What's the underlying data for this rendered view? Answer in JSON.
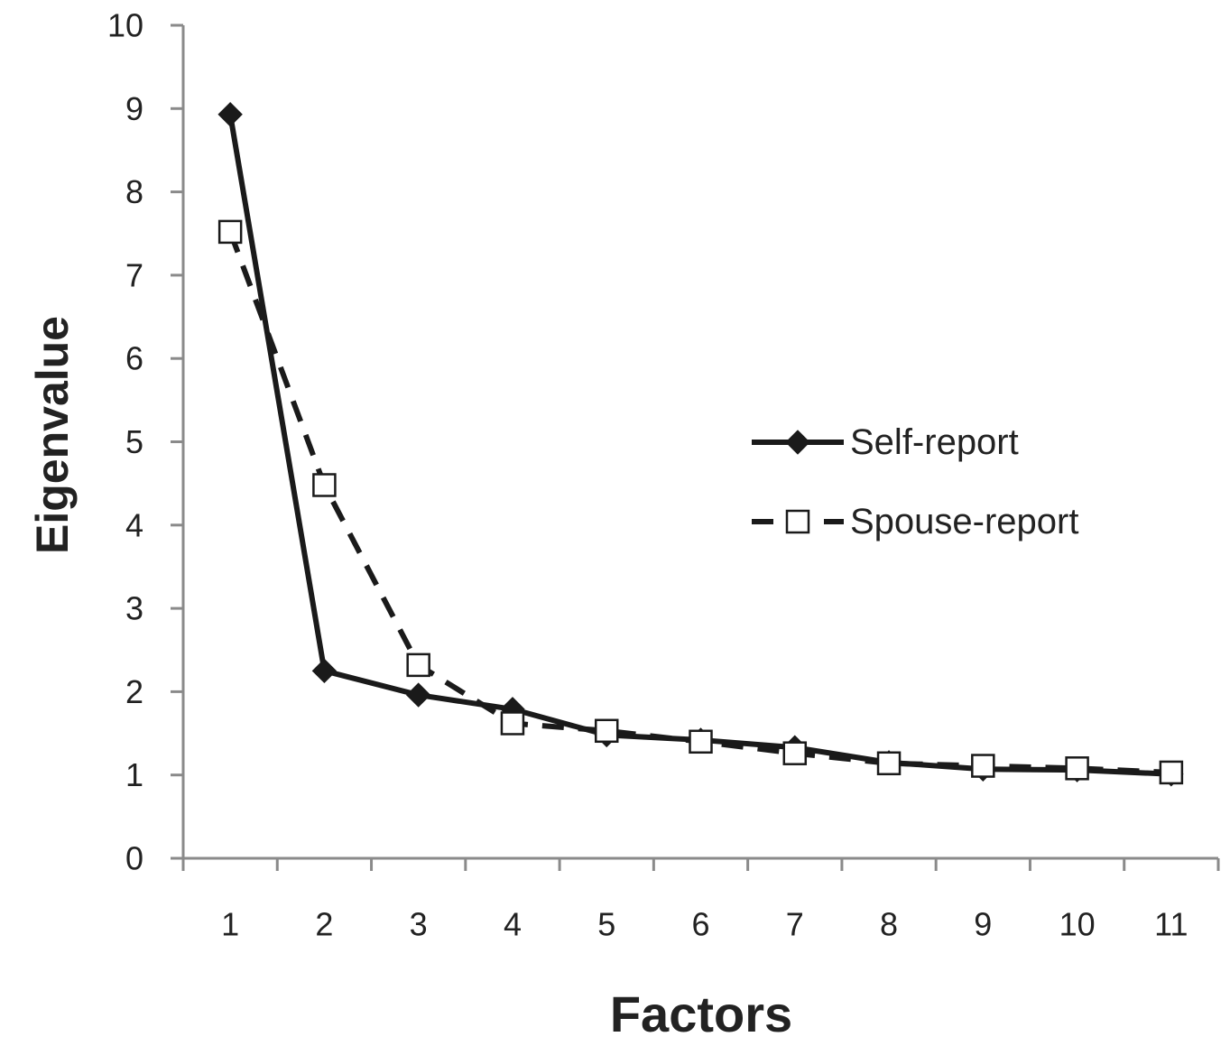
{
  "chart_data": {
    "type": "line",
    "xlabel": "Factors",
    "ylabel": "Eigenvalue",
    "categories": [
      "1",
      "2",
      "3",
      "4",
      "5",
      "6",
      "7",
      "8",
      "9",
      "10",
      "11"
    ],
    "ylim": [
      0,
      10
    ],
    "yticks": [
      "0",
      "1",
      "2",
      "3",
      "4",
      "5",
      "6",
      "7",
      "8",
      "9",
      "10"
    ],
    "grid": false,
    "legend_position": "right-middle",
    "series": [
      {
        "name": "Self-report",
        "line_style": "solid",
        "marker": "filled-diamond",
        "color": "#1a1a1a",
        "values": [
          8.93,
          2.25,
          1.96,
          1.79,
          1.48,
          1.42,
          1.33,
          1.15,
          1.07,
          1.06,
          1.01
        ]
      },
      {
        "name": "Spouse-report",
        "line_style": "dashed",
        "marker": "open-square",
        "color": "#1a1a1a",
        "values": [
          7.52,
          4.48,
          2.32,
          1.62,
          1.53,
          1.4,
          1.26,
          1.14,
          1.11,
          1.08,
          1.03
        ]
      }
    ]
  }
}
